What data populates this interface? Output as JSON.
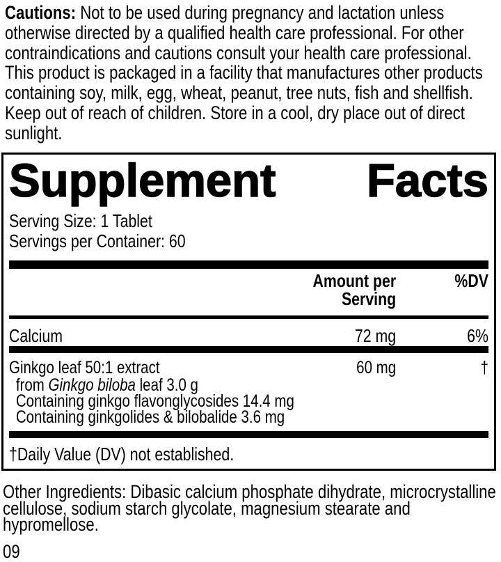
{
  "colors": {
    "text": "#000000",
    "background": "#ffffff"
  },
  "cautions": {
    "label": "Cautions:",
    "text": " Not to be used during pregnancy and lactation unless\notherwise directed by a qualified health care professional. For other\ncontraindications and cautions consult your health care professional.\nThis product is packaged in a facility that manufactures other products\ncontaining soy, milk, egg, wheat, peanut, tree nuts, fish and shellfish.\nKeep out of reach of children. Store in a cool, dry place out of direct\nsunlight."
  },
  "panel": {
    "title_left": "Supplement",
    "title_right": "Facts",
    "serving_size": "Serving Size: 1 Tablet",
    "servings_per_container": "Servings per Container: 60",
    "columns": {
      "amount": "Amount per Serving",
      "dv": "%DV"
    },
    "rows": [
      {
        "name": "Calcium",
        "amount": "72 mg",
        "dv": "6%"
      },
      {
        "name": "Ginkgo leaf 50:1 extract",
        "amount": "60 mg",
        "dv": "†",
        "details": [
          {
            "pre": "from ",
            "italic": "Ginkgo biloba",
            "post": " leaf 3.0 g"
          },
          {
            "text": "Containing ginkgo flavonglycosides 14.4 mg"
          },
          {
            "text": "Containing ginkgolides & bilobalide 3.6 mg"
          }
        ]
      }
    ],
    "footnote": "†Daily Value (DV) not established."
  },
  "other_ingredients": "Other Ingredients: Dibasic calcium phosphate dihydrate, microcrystalline\ncellulose, sodium starch glycolate, magnesium stearate and hypromellose.",
  "footer_code": "09"
}
